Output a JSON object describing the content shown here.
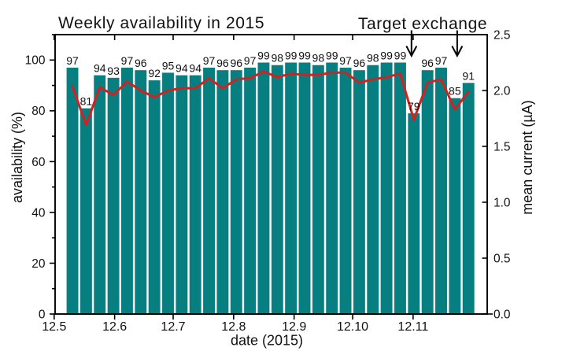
{
  "chart_data": {
    "type": "bar",
    "title": "Weekly availability in 2015",
    "annotation": {
      "label": "Target exchange",
      "arrow_weeks": [
        26,
        29
      ]
    },
    "xlabel": "date (2015)",
    "x_tick_labels": [
      "12.5",
      "12.6",
      "12.7",
      "12.8",
      "12.9",
      "12.10",
      "12.11"
    ],
    "left_axis": {
      "label": "availability (%)",
      "tick_labels": [
        "0",
        "20",
        "40",
        "60",
        "80",
        "100"
      ],
      "range": [
        0,
        110
      ]
    },
    "right_axis": {
      "label": "mean current (µA)",
      "tick_labels": [
        "0.0",
        "0.5",
        "1.0",
        "1.5",
        "2.0",
        "2.5"
      ],
      "range": [
        0,
        2.5
      ]
    },
    "grid": false,
    "legend": false,
    "background_color": "#ffffff",
    "text_color": "#111111",
    "series": [
      {
        "name": "availability",
        "type": "bar",
        "unit": "%",
        "axis": "left",
        "color": "#077e80",
        "values": [
          97,
          81,
          94,
          93,
          97,
          96,
          92,
          95,
          94,
          94,
          97,
          96,
          96,
          97,
          99,
          98,
          99,
          99,
          98,
          99,
          97,
          96,
          98,
          99,
          99,
          79,
          96,
          97,
          85,
          91
        ]
      },
      {
        "name": "mean current",
        "type": "line",
        "unit": "µA",
        "axis": "right",
        "color": "#cd2322",
        "values": [
          2.04,
          1.69,
          2.03,
          1.96,
          2.08,
          2.0,
          1.94,
          2.0,
          2.02,
          2.02,
          2.11,
          2.02,
          2.1,
          2.11,
          2.17,
          2.12,
          2.15,
          2.14,
          2.14,
          2.16,
          2.16,
          2.07,
          2.1,
          2.12,
          2.15,
          1.74,
          2.07,
          2.1,
          1.83,
          1.99
        ]
      }
    ]
  }
}
